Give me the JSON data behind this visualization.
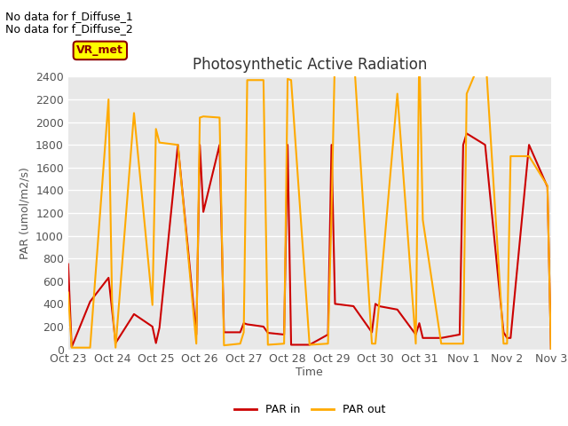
{
  "title": "Photosynthetic Active Radiation",
  "ylabel": "PAR (umol/m2/s)",
  "xlabel": "Time",
  "subtitle_lines": [
    "No data for f_Diffuse_1",
    "No data for f_Diffuse_2"
  ],
  "legend_label": "VR_met",
  "xlim_labels": [
    "Oct 23",
    "Oct 24",
    "Oct 25",
    "Oct 26",
    "Oct 27",
    "Oct 28",
    "Oct 29",
    "Oct 30",
    "Oct 31",
    "Nov 1",
    "Nov 2",
    "Nov 3"
  ],
  "ylim": [
    0,
    2400
  ],
  "yticks": [
    0,
    200,
    400,
    600,
    800,
    1000,
    1200,
    1400,
    1600,
    1800,
    2000,
    2200,
    2400
  ],
  "par_in_color": "#cc0000",
  "par_out_color": "#ffaa00",
  "background_color": "#e8e8e8",
  "par_in_x": [
    0.0,
    0.08,
    0.5,
    0.92,
    1.0,
    1.08,
    1.5,
    1.92,
    2.0,
    2.08,
    2.5,
    2.92,
    3.0,
    3.08,
    3.45,
    3.55,
    3.92,
    4.0,
    4.08,
    4.45,
    4.55,
    4.92,
    5.0,
    5.08,
    5.5,
    5.92,
    6.0,
    6.08,
    6.5,
    6.92,
    7.0,
    7.08,
    7.5,
    7.92,
    8.0,
    8.08,
    8.5,
    8.92,
    9.0,
    9.08,
    9.5,
    9.92,
    10.0,
    10.08,
    10.5,
    10.92,
    11.0
  ],
  "par_in_y": [
    750,
    20,
    420,
    630,
    350,
    55,
    310,
    200,
    55,
    190,
    1800,
    130,
    1800,
    1210,
    1800,
    150,
    150,
    230,
    220,
    200,
    145,
    130,
    1800,
    40,
    40,
    130,
    1800,
    400,
    380,
    150,
    400,
    380,
    350,
    130,
    230,
    100,
    100,
    130,
    1800,
    1900,
    1800,
    150,
    100,
    100,
    1800,
    1430,
    0
  ],
  "par_out_x": [
    0.0,
    0.08,
    0.5,
    0.92,
    1.0,
    1.08,
    1.5,
    1.92,
    2.0,
    2.08,
    2.5,
    2.92,
    3.0,
    3.08,
    3.45,
    3.55,
    3.92,
    4.0,
    4.08,
    4.45,
    4.55,
    4.92,
    5.0,
    5.08,
    5.5,
    5.92,
    6.0,
    6.08,
    6.5,
    6.92,
    7.0,
    7.08,
    7.5,
    7.92,
    8.0,
    8.08,
    8.5,
    8.92,
    9.0,
    9.08,
    9.5,
    9.92,
    10.0,
    10.08,
    10.5,
    10.92,
    11.0
  ],
  "par_out_y": [
    500,
    15,
    15,
    2200,
    430,
    15,
    2080,
    390,
    1940,
    1820,
    1800,
    50,
    2040,
    2050,
    2040,
    35,
    50,
    150,
    2370,
    2370,
    40,
    50,
    2380,
    2370,
    40,
    50,
    1200,
    2640,
    2640,
    50,
    50,
    380,
    2250,
    50,
    2640,
    1140,
    50,
    50,
    50,
    2250,
    2640,
    50,
    50,
    1700,
    1700,
    1440,
    0
  ]
}
